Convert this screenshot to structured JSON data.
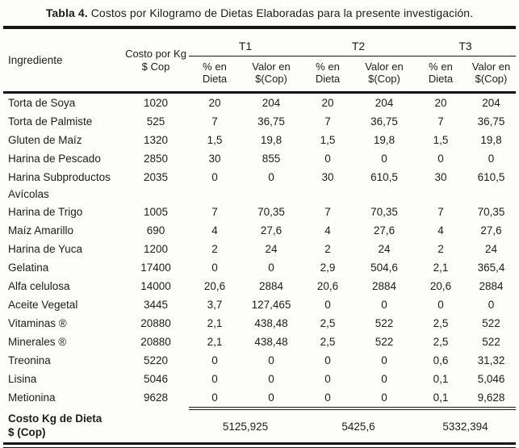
{
  "title": {
    "label": "Tabla 4.",
    "text": "Costos por Kilogramo de Dietas Elaboradas para la presente investigación."
  },
  "colors": {
    "text": "#1c1c1c",
    "rule": "#151515",
    "background": "#fdfdfc"
  },
  "table": {
    "headers": {
      "ingrediente": "Ingrediente",
      "costo": [
        "Costo por Kg",
        "$ Cop"
      ],
      "groups": [
        "T1",
        "T2",
        "T3"
      ],
      "pct": [
        "% en",
        "Dieta"
      ],
      "val": [
        "Valor en",
        "$(Cop)"
      ]
    },
    "rows": [
      {
        "ingrediente": "Torta de Soya",
        "values": [
          "1020",
          "20",
          "204",
          "20",
          "204",
          "20",
          "204"
        ]
      },
      {
        "ingrediente": "Torta de Palmiste",
        "values": [
          "525",
          "7",
          "36,75",
          "7",
          "36,75",
          "7",
          "36,75"
        ]
      },
      {
        "ingrediente": "Gluten de Maíz",
        "values": [
          "1320",
          "1,5",
          "19,8",
          "1,5",
          "19,8",
          "1,5",
          "19,8"
        ]
      },
      {
        "ingrediente": "Harina de Pescado",
        "values": [
          "2850",
          "30",
          "855",
          "0",
          "0",
          "0",
          "0"
        ]
      },
      {
        "ingrediente": "Harina Subproductos Avícolas",
        "values": [
          "2035",
          "0",
          "0",
          "30",
          "610,5",
          "30",
          "610,5"
        ]
      },
      {
        "ingrediente": "Harina de Trigo",
        "values": [
          "1005",
          "7",
          "70,35",
          "7",
          "70,35",
          "7",
          "70,35"
        ]
      },
      {
        "ingrediente": "Maíz Amarillo",
        "values": [
          "690",
          "4",
          "27,6",
          "4",
          "27,6",
          "4",
          "27,6"
        ]
      },
      {
        "ingrediente": "Harina de Yuca",
        "values": [
          "1200",
          "2",
          "24",
          "2",
          "24",
          "2",
          "24"
        ]
      },
      {
        "ingrediente": "Gelatina",
        "values": [
          "17400",
          "0",
          "0",
          "2,9",
          "504,6",
          "2,1",
          "365,4"
        ]
      },
      {
        "ingrediente": "Alfa celulosa",
        "values": [
          "14000",
          "20,6",
          "2884",
          "20,6",
          "2884",
          "20,6",
          "2884"
        ]
      },
      {
        "ingrediente": "Aceite Vegetal",
        "values": [
          "3445",
          "3,7",
          "127,465",
          "0",
          "0",
          "0",
          "0"
        ]
      },
      {
        "ingrediente": "Vitaminas ®",
        "values": [
          "20880",
          "2,1",
          "438,48",
          "2,5",
          "522",
          "2,5",
          "522"
        ]
      },
      {
        "ingrediente": "Minerales ®",
        "values": [
          "20880",
          "2,1",
          "438,48",
          "2,5",
          "522",
          "2,5",
          "522"
        ]
      },
      {
        "ingrediente": "Treonina",
        "values": [
          "5220",
          "0",
          "0",
          "0",
          "0",
          "0,6",
          "31,32"
        ]
      },
      {
        "ingrediente": "Lisina",
        "values": [
          "5046",
          "0",
          "0",
          "0",
          "0",
          "0,1",
          "5,046"
        ]
      },
      {
        "ingrediente": "Metionina",
        "values": [
          "9628",
          "0",
          "0",
          "0",
          "0",
          "0,1",
          "9,628"
        ]
      }
    ],
    "footer": {
      "label": [
        "Costo Kg de Dieta",
        "$ (Cop)"
      ],
      "totals": [
        "5125,925",
        "5425,6",
        "5332,394"
      ]
    }
  }
}
